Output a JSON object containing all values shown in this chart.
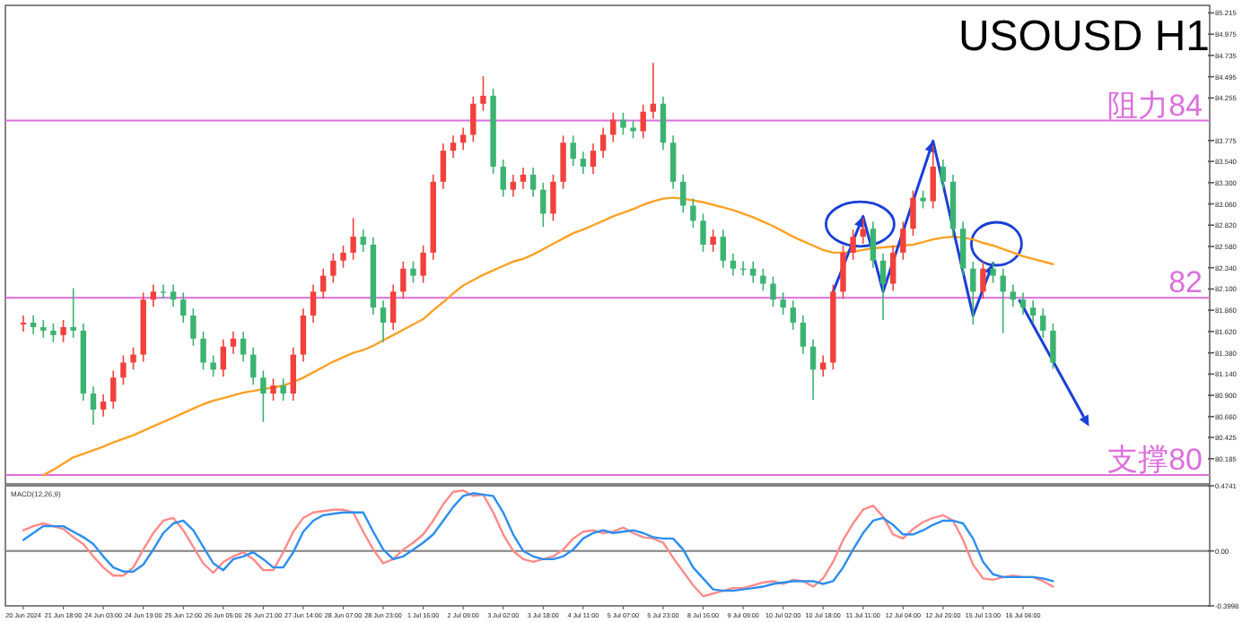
{
  "chart_data": [
    {
      "type": "candlestick",
      "title": "USOUSD H1",
      "tick_labels": "y",
      "categories": [
        null,
        null,
        null,
        null,
        null,
        null,
        null,
        null,
        null,
        null,
        null,
        null,
        null,
        null,
        null,
        null,
        null,
        null,
        null,
        null,
        null,
        null,
        null,
        null,
        null,
        null,
        null,
        null,
        null,
        null,
        null,
        null,
        null,
        null,
        null,
        null,
        null,
        null,
        null,
        null,
        null,
        null,
        null,
        null,
        null,
        null,
        null,
        null,
        null,
        null,
        null,
        null,
        null,
        null,
        null,
        null,
        null,
        null,
        null,
        null,
        null,
        null,
        null,
        null,
        null,
        null,
        null,
        null,
        null,
        null,
        null,
        null,
        null,
        null,
        null,
        null,
        null,
        null,
        null,
        null,
        null,
        null,
        null,
        null,
        null,
        null,
        null,
        null,
        null,
        null,
        null,
        null,
        null,
        null,
        null,
        null,
        null,
        null,
        null,
        null,
        null,
        null,
        null,
        null
      ],
      "ohlc": [
        [
          81.7,
          81.8,
          81.62,
          81.72
        ],
        [
          81.72,
          81.8,
          81.59,
          81.67
        ],
        [
          81.67,
          81.75,
          81.55,
          81.63
        ],
        [
          81.63,
          81.71,
          81.5,
          81.58
        ],
        [
          81.58,
          81.75,
          81.5,
          81.67
        ],
        [
          81.67,
          82.11,
          81.55,
          81.63
        ],
        [
          81.63,
          81.71,
          80.84,
          80.92
        ],
        [
          80.92,
          81.0,
          80.57,
          80.74
        ],
        [
          80.74,
          80.91,
          80.66,
          80.83
        ],
        [
          80.83,
          81.18,
          80.75,
          81.1
        ],
        [
          81.1,
          81.35,
          81.02,
          81.27
        ],
        [
          81.27,
          81.44,
          81.19,
          81.36
        ],
        [
          81.36,
          82.06,
          81.28,
          81.98
        ],
        [
          81.98,
          82.15,
          81.9,
          82.07
        ],
        [
          82.07,
          82.15,
          81.99,
          82.07
        ],
        [
          82.07,
          82.15,
          81.9,
          81.98
        ],
        [
          81.98,
          82.06,
          81.72,
          81.8
        ],
        [
          81.8,
          81.88,
          81.46,
          81.54
        ],
        [
          81.54,
          81.62,
          81.19,
          81.27
        ],
        [
          81.27,
          81.35,
          81.11,
          81.19
        ],
        [
          81.19,
          81.53,
          81.11,
          81.45
        ],
        [
          81.45,
          81.62,
          81.37,
          81.54
        ],
        [
          81.54,
          81.62,
          81.28,
          81.36
        ],
        [
          81.36,
          81.44,
          81.02,
          81.1
        ],
        [
          81.1,
          81.18,
          80.6,
          80.92
        ],
        [
          80.92,
          81.09,
          80.84,
          81.01
        ],
        [
          81.01,
          81.09,
          80.84,
          80.92
        ],
        [
          80.92,
          81.44,
          80.84,
          81.36
        ],
        [
          81.36,
          81.88,
          81.28,
          81.8
        ],
        [
          81.8,
          82.15,
          81.72,
          82.07
        ],
        [
          82.07,
          82.33,
          81.99,
          82.25
        ],
        [
          82.25,
          82.5,
          82.17,
          82.42
        ],
        [
          82.42,
          82.59,
          82.34,
          82.51
        ],
        [
          82.51,
          82.9,
          82.43,
          82.69
        ],
        [
          82.69,
          82.77,
          82.52,
          82.6
        ],
        [
          82.6,
          82.68,
          81.81,
          81.89
        ],
        [
          81.89,
          81.97,
          81.5,
          81.72
        ],
        [
          81.72,
          82.15,
          81.64,
          82.07
        ],
        [
          82.07,
          82.41,
          81.99,
          82.33
        ],
        [
          82.33,
          82.41,
          82.17,
          82.25
        ],
        [
          82.25,
          82.59,
          82.17,
          82.51
        ],
        [
          82.51,
          83.39,
          82.43,
          83.31
        ],
        [
          83.31,
          83.74,
          83.23,
          83.66
        ],
        [
          83.66,
          83.83,
          83.58,
          83.75
        ],
        [
          83.75,
          83.92,
          83.67,
          83.84
        ],
        [
          83.84,
          84.27,
          83.76,
          84.19
        ],
        [
          84.19,
          84.5,
          84.11,
          84.28
        ],
        [
          84.28,
          84.36,
          83.4,
          83.48
        ],
        [
          83.48,
          83.56,
          83.14,
          83.22
        ],
        [
          83.22,
          83.39,
          83.14,
          83.31
        ],
        [
          83.31,
          83.47,
          83.23,
          83.39
        ],
        [
          83.39,
          83.47,
          83.14,
          83.22
        ],
        [
          83.22,
          83.3,
          82.8,
          82.95
        ],
        [
          82.95,
          83.39,
          82.87,
          83.31
        ],
        [
          83.31,
          83.83,
          83.23,
          83.75
        ],
        [
          83.75,
          83.83,
          83.49,
          83.57
        ],
        [
          83.57,
          83.65,
          83.4,
          83.48
        ],
        [
          83.48,
          83.74,
          83.4,
          83.66
        ],
        [
          83.66,
          83.92,
          83.58,
          83.84
        ],
        [
          83.84,
          84.09,
          83.76,
          84.01
        ],
        [
          84.01,
          84.09,
          83.84,
          83.92
        ],
        [
          83.92,
          84.0,
          83.8,
          83.88
        ],
        [
          83.88,
          84.18,
          83.8,
          84.1
        ],
        [
          84.1,
          84.65,
          84.02,
          84.19
        ],
        [
          84.19,
          84.27,
          83.67,
          83.75
        ],
        [
          83.75,
          83.83,
          83.23,
          83.31
        ],
        [
          83.31,
          83.39,
          82.96,
          83.04
        ],
        [
          83.04,
          83.12,
          82.79,
          82.87
        ],
        [
          82.87,
          82.95,
          82.52,
          82.6
        ],
        [
          82.6,
          82.77,
          82.52,
          82.69
        ],
        [
          82.69,
          82.77,
          82.34,
          82.42
        ],
        [
          82.42,
          82.5,
          82.25,
          82.33
        ],
        [
          82.33,
          82.41,
          82.25,
          82.33
        ],
        [
          82.33,
          82.41,
          82.17,
          82.25
        ],
        [
          82.25,
          82.33,
          82.08,
          82.16
        ],
        [
          82.16,
          82.24,
          81.9,
          81.98
        ],
        [
          81.98,
          82.06,
          81.81,
          81.89
        ],
        [
          81.89,
          81.97,
          81.64,
          81.72
        ],
        [
          81.72,
          81.8,
          81.37,
          81.45
        ],
        [
          81.45,
          81.53,
          80.85,
          81.19
        ],
        [
          81.19,
          81.35,
          81.11,
          81.27
        ],
        [
          81.27,
          82.15,
          81.19,
          82.07
        ],
        [
          82.07,
          82.59,
          81.99,
          82.51
        ],
        [
          82.51,
          82.77,
          82.43,
          82.69
        ],
        [
          82.69,
          82.9,
          82.61,
          82.78
        ],
        [
          82.78,
          82.86,
          82.34,
          82.42
        ],
        [
          82.42,
          82.5,
          81.75,
          82.16
        ],
        [
          82.16,
          82.59,
          82.08,
          82.51
        ],
        [
          82.51,
          82.86,
          82.43,
          82.78
        ],
        [
          82.78,
          83.21,
          82.7,
          83.13
        ],
        [
          83.13,
          83.21,
          83.01,
          83.09
        ],
        [
          83.09,
          83.72,
          83.01,
          83.48
        ],
        [
          83.48,
          83.56,
          83.23,
          83.31
        ],
        [
          83.31,
          83.39,
          82.7,
          82.78
        ],
        [
          82.78,
          82.86,
          82.25,
          82.33
        ],
        [
          82.33,
          82.41,
          81.7,
          82.07
        ],
        [
          82.07,
          82.41,
          81.99,
          82.33
        ],
        [
          82.33,
          82.41,
          82.17,
          82.25
        ],
        [
          82.25,
          82.33,
          81.6,
          82.07
        ],
        [
          82.07,
          82.15,
          81.9,
          81.98
        ],
        [
          81.98,
          82.06,
          81.81,
          81.89
        ],
        [
          81.89,
          81.97,
          81.72,
          81.8
        ],
        [
          81.8,
          81.88,
          81.55,
          81.63
        ],
        [
          81.63,
          81.71,
          81.2,
          81.27
        ]
      ],
      "colors": [
        "#f0413c",
        "#3cb371",
        "#3cb371",
        "#3cb371",
        "#f0413c",
        "#3cb371",
        "#3cb371",
        "#3cb371",
        "#f0413c",
        "#f0413c",
        "#f0413c",
        "#f0413c",
        "#f0413c",
        "#f0413c",
        "#3cb371",
        "#3cb371",
        "#3cb371",
        "#3cb371",
        "#3cb371",
        "#3cb371",
        "#f0413c",
        "#f0413c",
        "#3cb371",
        "#3cb371",
        "#3cb371",
        "#f0413c",
        "#3cb371",
        "#f0413c",
        "#f0413c",
        "#f0413c",
        "#f0413c",
        "#f0413c",
        "#f0413c",
        "#f0413c",
        "#3cb371",
        "#3cb371",
        "#3cb371",
        "#f0413c",
        "#f0413c",
        "#3cb371",
        "#f0413c",
        "#f0413c",
        "#f0413c",
        "#f0413c",
        "#f0413c",
        "#f0413c",
        "#f0413c",
        "#3cb371",
        "#3cb371",
        "#f0413c",
        "#f0413c",
        "#3cb371",
        "#3cb371",
        "#f0413c",
        "#f0413c",
        "#3cb371",
        "#3cb371",
        "#f0413c",
        "#f0413c",
        "#f0413c",
        "#3cb371",
        "#3cb371",
        "#f0413c",
        "#f0413c",
        "#3cb371",
        "#3cb371",
        "#3cb371",
        "#3cb371",
        "#3cb371",
        "#f0413c",
        "#3cb371",
        "#3cb371",
        "#3cb371",
        "#3cb371",
        "#3cb371",
        "#3cb371",
        "#3cb371",
        "#3cb371",
        "#3cb371",
        "#3cb371",
        "#f0413c",
        "#f0413c",
        "#f0413c",
        "#f0413c",
        "#f0413c",
        "#3cb371",
        "#3cb371",
        "#f0413c",
        "#f0413c",
        "#f0413c",
        "#3cb371",
        "#f0413c",
        "#3cb371",
        "#3cb371",
        "#3cb371",
        "#3cb371",
        "#f0413c",
        "#3cb371",
        "#3cb371",
        "#3cb371",
        "#3cb371",
        "#3cb371",
        "#3cb371",
        "#3cb371"
      ],
      "series": [
        {
          "type": "line",
          "color": "#ffa124",
          "values": [
            null,
            null,
            80.0,
            80.06,
            80.13,
            80.2,
            80.24,
            80.28,
            80.32,
            80.37,
            80.41,
            80.45,
            80.5,
            80.55,
            80.6,
            80.65,
            80.7,
            80.75,
            80.8,
            80.84,
            80.87,
            80.9,
            80.93,
            80.95,
            80.97,
            80.99,
            81.01,
            81.05,
            81.1,
            81.16,
            81.22,
            81.28,
            81.33,
            81.38,
            81.41,
            81.46,
            81.52,
            81.58,
            81.64,
            81.7,
            81.76,
            81.86,
            81.95,
            82.05,
            82.14,
            82.2,
            82.26,
            82.31,
            82.36,
            82.41,
            82.44,
            82.49,
            82.55,
            82.61,
            82.67,
            82.73,
            82.77,
            82.82,
            82.87,
            82.92,
            82.96,
            83.0,
            83.05,
            83.09,
            83.12,
            83.13,
            83.12,
            83.1,
            83.08,
            83.05,
            83.02,
            82.99,
            82.95,
            82.91,
            82.86,
            82.81,
            82.75,
            82.69,
            82.64,
            82.59,
            82.54,
            82.51,
            82.51,
            82.52,
            82.54,
            82.56,
            82.57,
            82.58,
            82.59,
            82.6,
            82.63,
            82.66,
            82.68,
            82.69,
            82.68,
            82.66,
            82.62,
            82.59,
            82.55,
            82.51,
            82.47,
            82.44,
            82.41,
            82.38
          ]
        },
        {
          "type": "line",
          "color": "#1a3fd6",
          "values": [
            null,
            null,
            null,
            null,
            null,
            null,
            null,
            null,
            null,
            null,
            null,
            null,
            null,
            null,
            null,
            null,
            null,
            null,
            null,
            null,
            null,
            null,
            null,
            null,
            null,
            null,
            null,
            null,
            null,
            null,
            null,
            null,
            null,
            null,
            null,
            null,
            null,
            null,
            null,
            null,
            null,
            null,
            null,
            null,
            null,
            null,
            null,
            null,
            null,
            null,
            null,
            null,
            null,
            null,
            null,
            null,
            null,
            null,
            null,
            null,
            null,
            null,
            null,
            null,
            null,
            null,
            null,
            null,
            null,
            null,
            null,
            null,
            null,
            null,
            null,
            null,
            null,
            null,
            null,
            null,
            null,
            82.07,
            82.35,
            82.64,
            82.92,
            82.5,
            82.07,
            82.41,
            82.75,
            83.09,
            83.43,
            83.77,
            83.28,
            82.78,
            82.29,
            81.8,
            82.1,
            82.39,
            null,
            null,
            null,
            null,
            null,
            null
          ]
        }
      ],
      "ylim": [
        79.9,
        85.3
      ],
      "yticks": [
        {
          "value": 80.185,
          "label": "80.185"
        },
        {
          "value": 80.425,
          "label": "80.425"
        },
        {
          "value": 80.66,
          "label": "80.660"
        },
        {
          "value": 80.9,
          "label": "80.900"
        },
        {
          "value": 81.14,
          "label": "81.140"
        },
        {
          "value": 81.38,
          "label": "81.380"
        },
        {
          "value": 81.62,
          "label": "81.620"
        },
        {
          "value": 81.86,
          "label": "81.860"
        },
        {
          "value": 82.1,
          "label": "82.100"
        },
        {
          "value": 82.34,
          "label": "82.340"
        },
        {
          "value": 82.58,
          "label": "82.580"
        },
        {
          "value": 82.82,
          "label": "82.820"
        },
        {
          "value": 83.06,
          "label": "83.060"
        },
        {
          "value": 83.3,
          "label": "83.300"
        },
        {
          "value": 83.54,
          "label": "83.540"
        },
        {
          "value": 83.775,
          "label": "83.775"
        },
        {
          "value": 84.255,
          "label": "84.255"
        },
        {
          "value": 84.495,
          "label": "84.495"
        },
        {
          "value": 84.735,
          "label": "84.735"
        },
        {
          "value": 84.975,
          "label": "84.975"
        },
        {
          "value": 85.215,
          "label": "85.215"
        }
      ],
      "ref_lines": [
        {
          "axis": "y",
          "value": 84,
          "label": "阻力84",
          "color": "#dd6fdd"
        },
        {
          "axis": "y",
          "value": 82,
          "label": "82",
          "color": "#dd6fdd"
        },
        {
          "axis": "y",
          "value": 80,
          "label": "支撑80",
          "color": "#dd6fdd"
        }
      ]
    },
    {
      "type": "line",
      "title": "MACD(12,26,9)",
      "categories": [
        "20 Jun 2024",
        null,
        null,
        null,
        "21 Jun 18:00",
        null,
        null,
        null,
        "24 Jun 03:00",
        null,
        null,
        null,
        "24 Jun 19:00",
        null,
        null,
        null,
        "25 Jun 12:00",
        null,
        null,
        null,
        "26 Jun 05:00",
        null,
        null,
        null,
        "26 Jun 21:00",
        null,
        null,
        null,
        "27 Jun 14:00",
        null,
        null,
        null,
        "28 Jun 07:00",
        null,
        null,
        null,
        "28 Jun 23:00",
        null,
        null,
        null,
        "1 Jul 16:00",
        null,
        null,
        null,
        "2 Jul 09:00",
        null,
        null,
        null,
        "3 Jul 02:00",
        null,
        null,
        null,
        "3 Jul 18:00",
        null,
        null,
        null,
        "4 Jul 11:00",
        null,
        null,
        null,
        "5 Jul 07:00",
        null,
        null,
        null,
        "5 Jul 23:00",
        null,
        null,
        null,
        "8 Jul 16:00",
        null,
        null,
        null,
        "9 Jul 09:00",
        null,
        null,
        null,
        "10 Jul 02:00",
        null,
        null,
        null,
        "10 Jul 18:00",
        null,
        null,
        null,
        "11 Jul 11:00",
        null,
        null,
        null,
        "12 Jul 04:00",
        null,
        null,
        null,
        "12 Jul 20:00",
        null,
        null,
        null,
        "15 Jul 13:00",
        null,
        null,
        null,
        "16 Jul 06:00",
        null,
        null,
        null
      ],
      "series": [
        {
          "color": "#ff8a8a",
          "values": [
            0.15,
            0.18,
            0.2,
            0.18,
            0.16,
            0.1,
            0.05,
            -0.04,
            -0.12,
            -0.18,
            -0.18,
            -0.12,
            0.01,
            0.13,
            0.22,
            0.24,
            0.15,
            0.03,
            -0.09,
            -0.16,
            -0.08,
            -0.04,
            -0.01,
            -0.06,
            -0.14,
            -0.14,
            -0.01,
            0.14,
            0.24,
            0.28,
            0.29,
            0.3,
            0.3,
            0.28,
            0.14,
            0.01,
            -0.09,
            -0.06,
            0.01,
            0.06,
            0.12,
            0.22,
            0.34,
            0.43,
            0.44,
            0.4,
            0.41,
            0.28,
            0.12,
            0.0,
            -0.06,
            -0.08,
            -0.06,
            -0.04,
            0.01,
            0.09,
            0.14,
            0.15,
            0.13,
            0.14,
            0.17,
            0.13,
            0.1,
            0.09,
            0.06,
            -0.05,
            -0.15,
            -0.25,
            -0.33,
            -0.31,
            -0.29,
            -0.27,
            -0.27,
            -0.25,
            -0.23,
            -0.22,
            -0.24,
            -0.21,
            -0.22,
            -0.26,
            -0.2,
            -0.08,
            0.08,
            0.2,
            0.3,
            0.33,
            0.25,
            0.12,
            0.09,
            0.16,
            0.21,
            0.24,
            0.26,
            0.22,
            0.08,
            -0.1,
            -0.2,
            -0.21,
            -0.19,
            -0.18,
            -0.19,
            -0.19,
            -0.22,
            -0.26
          ]
        },
        {
          "color": "#2b8ef0",
          "values": [
            0.08,
            0.13,
            0.18,
            0.18,
            0.18,
            0.14,
            0.1,
            0.05,
            -0.04,
            -0.12,
            -0.15,
            -0.15,
            -0.1,
            0.01,
            0.13,
            0.2,
            0.22,
            0.15,
            0.03,
            -0.09,
            -0.14,
            -0.06,
            -0.04,
            -0.01,
            -0.06,
            -0.12,
            -0.12,
            -0.01,
            0.14,
            0.22,
            0.26,
            0.27,
            0.28,
            0.28,
            0.28,
            0.14,
            0.01,
            -0.06,
            -0.04,
            0.01,
            0.06,
            0.12,
            0.22,
            0.32,
            0.4,
            0.42,
            0.41,
            0.4,
            0.28,
            0.12,
            0.0,
            -0.04,
            -0.06,
            -0.06,
            -0.04,
            0.01,
            0.09,
            0.13,
            0.15,
            0.13,
            0.14,
            0.15,
            0.13,
            0.1,
            0.09,
            0.09,
            0.01,
            -0.12,
            -0.2,
            -0.28,
            -0.29,
            -0.29,
            -0.28,
            -0.27,
            -0.26,
            -0.24,
            -0.23,
            -0.22,
            -0.22,
            -0.22,
            -0.24,
            -0.22,
            -0.12,
            0.01,
            0.13,
            0.22,
            0.24,
            0.19,
            0.12,
            0.12,
            0.15,
            0.19,
            0.22,
            0.22,
            0.2,
            0.09,
            -0.08,
            -0.17,
            -0.19,
            -0.19,
            -0.19,
            -0.19,
            -0.2,
            -0.22
          ]
        }
      ],
      "ylim": [
        -0.3998,
        0.4741
      ],
      "yticks": [
        {
          "value": -0.3998,
          "label": "-0.3998"
        },
        {
          "value": 0,
          "label": "0.00"
        },
        {
          "value": 0.4741,
          "label": "0.4741"
        }
      ],
      "ref_lines": [
        {
          "axis": "y",
          "value": 0,
          "color": "#808080"
        }
      ]
    }
  ]
}
